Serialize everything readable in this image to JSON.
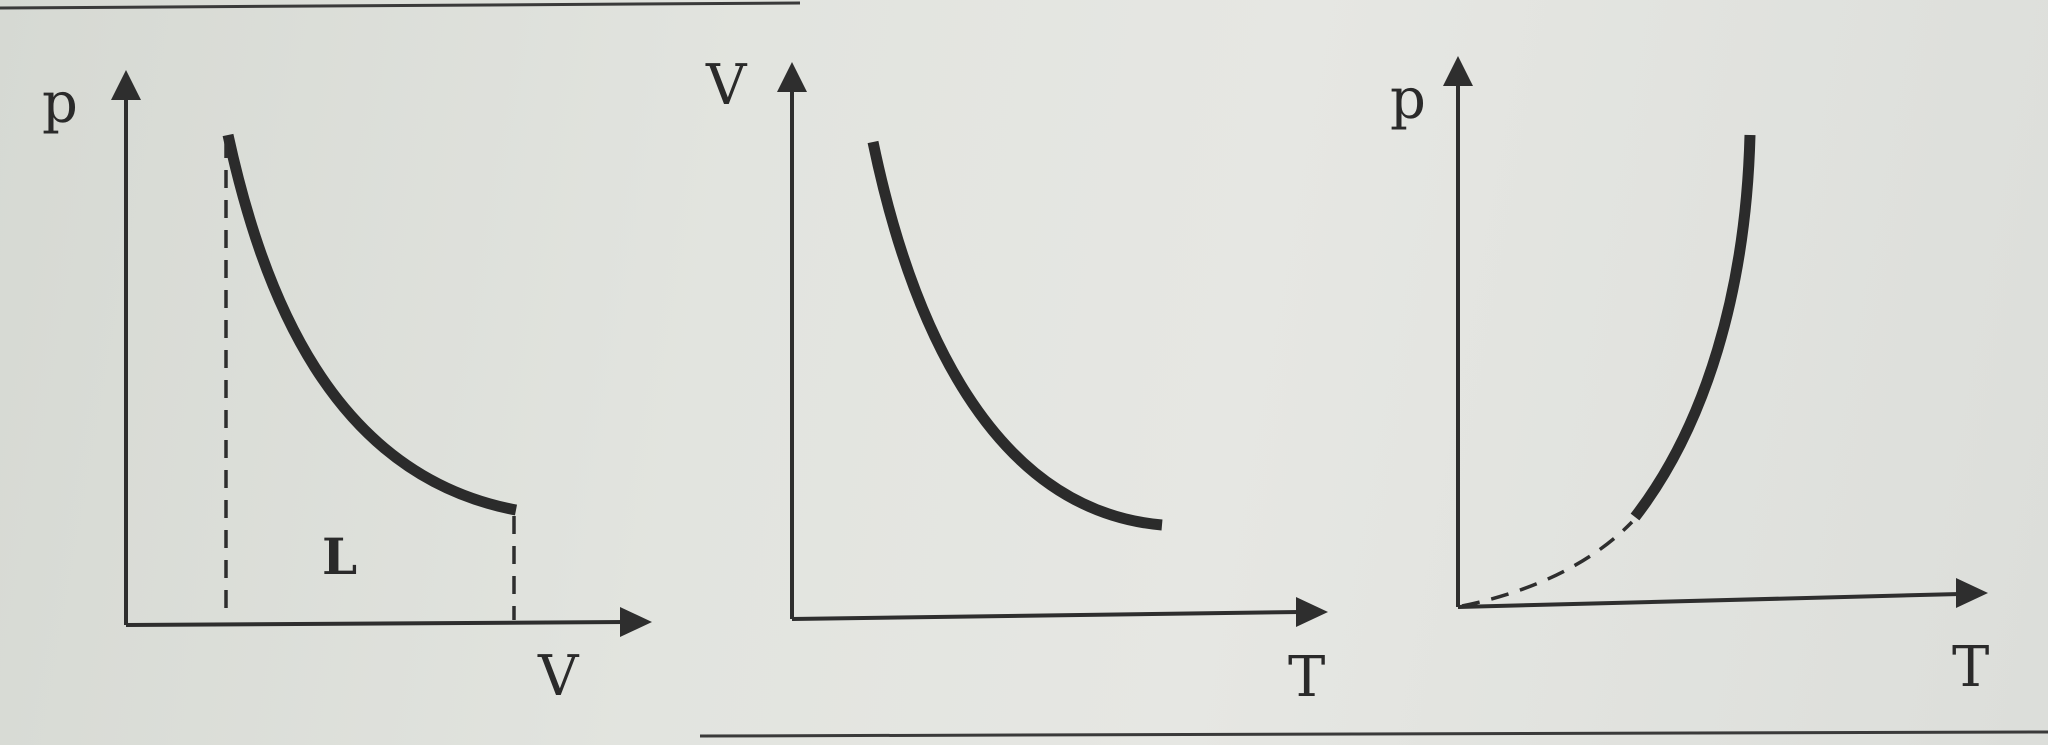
{
  "diagrams": [
    {
      "y_label": "p",
      "x_label": "V",
      "region_label": "L"
    },
    {
      "y_label": "V",
      "x_label": "T"
    },
    {
      "y_label": "p",
      "x_label": "T"
    }
  ]
}
